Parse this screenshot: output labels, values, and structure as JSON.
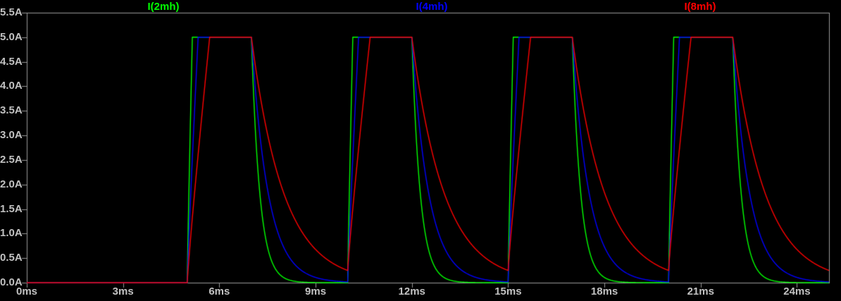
{
  "colors": {
    "background": "#000000",
    "border": "#9a9a9a",
    "tick_text": "#c2c2c2"
  },
  "traces": [
    {
      "label": "I(2mh)",
      "color": "#00ff00"
    },
    {
      "label": "I(4mh)",
      "color": "#0000ff"
    },
    {
      "label": "I(8mh)",
      "color": "#ff0000"
    }
  ],
  "chart_data": {
    "type": "line",
    "title": "",
    "legend_position": "top",
    "grid": false,
    "x_axis": {
      "unit": "ms",
      "min_ms": 0,
      "max_ms": 25,
      "tick_step_ms": 3,
      "tick_values_ms": [
        0,
        3,
        6,
        9,
        12,
        15,
        18,
        21,
        24
      ],
      "tick_labels": [
        "0ms",
        "3ms",
        "6ms",
        "9ms",
        "12ms",
        "15ms",
        "18ms",
        "21ms",
        "24ms"
      ]
    },
    "y_axis": {
      "unit": "A",
      "min_A": 0.0,
      "max_A": 5.5,
      "tick_step_A": 0.5,
      "tick_values_A": [
        5.5,
        5.0,
        4.5,
        4.0,
        3.5,
        3.0,
        2.5,
        2.0,
        1.5,
        1.0,
        0.5,
        0.0
      ],
      "tick_labels": [
        "5.5A",
        "5.0A",
        "4.5A",
        "4.0A",
        "3.5A",
        "3.0A",
        "2.5A",
        "2.0A",
        "1.5A",
        "1.0A",
        "0.5A",
        "0.0A"
      ]
    },
    "pulse_train": {
      "first_rise_ms": 5.0,
      "period_ms": 5.0,
      "on_duration_ms": 2.0,
      "flat_top_A": 5.0,
      "baseline_A": 0.0
    },
    "series": [
      {
        "name": "I(2mh)",
        "color": "#00ff00",
        "rise_time_ms": 0.16,
        "decay_tau_ms": 0.26,
        "peak_A": 5.0
      },
      {
        "name": "I(4mh)",
        "color": "#0000ff",
        "rise_time_ms": 0.34,
        "decay_tau_ms": 0.52,
        "peak_A": 5.0
      },
      {
        "name": "I(8mh)",
        "color": "#ff0000",
        "rise_time_ms": 0.7,
        "decay_tau_ms": 1.0,
        "peak_A": 5.0
      }
    ]
  }
}
